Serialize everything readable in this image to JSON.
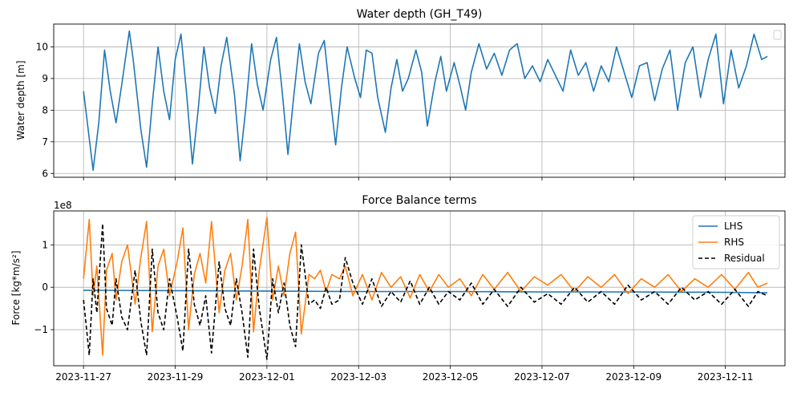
{
  "chart_data": [
    {
      "type": "line",
      "title": "Water depth (GH_T49)",
      "xlabel": "",
      "ylabel": "Water depth [m]",
      "ylim": [
        5.88,
        10.72
      ],
      "yticks": [
        6,
        7,
        8,
        9,
        10
      ],
      "xlim_days": [
        -0.65,
        15.3
      ],
      "grid": true,
      "legend": "top-right (empty)",
      "series": [
        {
          "color": "#1f77b4",
          "x": [
            "2023-11-27 00:00",
            "2023-11-27 05:00",
            "2023-11-27 08:00",
            "2023-11-27 11:00",
            "2023-11-27 14:00",
            "2023-11-27 17:00",
            "2023-11-27 20:00",
            "2023-11-28 00:00",
            "2023-11-28 02:00",
            "2023-11-28 06:00",
            "2023-11-28 09:00",
            "2023-11-28 12:00",
            "2023-11-28 15:00",
            "2023-11-28 18:00",
            "2023-11-28 21:00",
            "2023-11-29 00:00",
            "2023-11-29 03:00",
            "2023-11-29 06:00",
            "2023-11-29 09:00",
            "2023-11-29 12:00",
            "2023-11-29 15:00",
            "2023-11-29 18:00",
            "2023-11-29 21:00",
            "2023-11-30 00:00",
            "2023-11-30 03:00",
            "2023-11-30 07:00",
            "2023-11-30 10:00",
            "2023-11-30 13:00",
            "2023-11-30 16:00",
            "2023-11-30 19:00",
            "2023-11-30 22:00",
            "2023-12-01 02:00",
            "2023-12-01 05:00",
            "2023-12-01 08:00",
            "2023-12-01 11:00",
            "2023-12-01 14:00",
            "2023-12-01 17:00",
            "2023-12-01 20:00",
            "2023-12-01 23:00",
            "2023-12-02 03:00",
            "2023-12-02 06:00",
            "2023-12-02 09:00",
            "2023-12-02 12:00",
            "2023-12-02 15:00",
            "2023-12-02 18:00",
            "2023-12-02 22:00",
            "2023-12-03 01:00",
            "2023-12-03 04:00",
            "2023-12-03 07:00",
            "2023-12-03 10:00",
            "2023-12-03 14:00",
            "2023-12-03 17:00",
            "2023-12-03 20:00",
            "2023-12-03 23:00",
            "2023-12-04 02:00",
            "2023-12-04 06:00",
            "2023-12-04 09:00",
            "2023-12-04 12:00",
            "2023-12-04 16:00",
            "2023-12-04 19:00",
            "2023-12-04 22:00",
            "2023-12-05 02:00",
            "2023-12-05 05:00",
            "2023-12-05 08:00",
            "2023-12-05 11:00",
            "2023-12-05 15:00",
            "2023-12-05 19:00",
            "2023-12-05 23:00",
            "2023-12-06 03:00",
            "2023-12-06 07:00",
            "2023-12-06 11:00",
            "2023-12-06 15:00",
            "2023-12-06 19:00",
            "2023-12-06 23:00",
            "2023-12-07 03:00",
            "2023-12-07 07:00",
            "2023-12-07 11:00",
            "2023-12-07 15:00",
            "2023-12-07 19:00",
            "2023-12-07 23:00",
            "2023-12-08 03:00",
            "2023-12-08 07:00",
            "2023-12-08 11:00",
            "2023-12-08 15:00",
            "2023-12-08 19:00",
            "2023-12-08 23:00",
            "2023-12-09 03:00",
            "2023-12-09 07:00",
            "2023-12-09 11:00",
            "2023-12-09 15:00",
            "2023-12-09 19:00",
            "2023-12-09 23:00",
            "2023-12-10 03:00",
            "2023-12-10 07:00",
            "2023-12-10 11:00",
            "2023-12-10 15:00",
            "2023-12-10 19:00",
            "2023-12-10 23:00",
            "2023-12-11 03:00",
            "2023-12-11 07:00",
            "2023-12-11 11:00",
            "2023-12-11 15:00",
            "2023-12-11 19:00",
            "2023-12-11 22:00"
          ],
          "y": [
            8.6,
            6.1,
            7.6,
            9.9,
            8.6,
            7.6,
            8.8,
            10.5,
            9.6,
            7.4,
            6.2,
            8.2,
            10.0,
            8.6,
            7.7,
            9.6,
            10.4,
            8.5,
            6.3,
            8.0,
            10.0,
            8.7,
            7.9,
            9.4,
            10.3,
            8.5,
            6.4,
            8.1,
            10.1,
            8.8,
            8.0,
            9.6,
            10.3,
            8.6,
            6.6,
            8.4,
            10.1,
            8.9,
            8.2,
            9.8,
            10.2,
            8.5,
            6.9,
            8.7,
            10.0,
            9.0,
            8.4,
            9.9,
            9.8,
            8.4,
            7.3,
            8.7,
            9.6,
            8.6,
            9.0,
            9.9,
            9.2,
            7.5,
            8.9,
            9.7,
            8.6,
            9.5,
            8.8,
            8.0,
            9.2,
            10.1,
            9.3,
            9.8,
            9.1,
            9.9,
            10.1,
            9.0,
            9.4,
            8.9,
            9.6,
            9.1,
            8.6,
            9.9,
            9.1,
            9.5,
            8.6,
            9.4,
            8.9,
            10.0,
            9.2,
            8.4,
            9.4,
            9.5,
            8.3,
            9.3,
            9.9,
            8.0,
            9.5,
            10.0,
            8.4,
            9.6,
            10.4,
            8.2,
            9.9,
            8.7,
            9.4,
            10.4,
            9.6,
            9.7
          ]
        }
      ]
    },
    {
      "type": "line",
      "title": "Force Balance terms",
      "xlabel": "",
      "ylabel": "Force [kg*m/s²]",
      "offset_label": "1e8",
      "ylim": [
        -1.85,
        1.8
      ],
      "yticks": [
        -1,
        0,
        1
      ],
      "xlim_days": [
        -0.65,
        15.3
      ],
      "xticks": [
        "2023-11-27",
        "2023-11-29",
        "2023-12-01",
        "2023-12-03",
        "2023-12-05",
        "2023-12-07",
        "2023-12-09",
        "2023-12-11"
      ],
      "grid": true,
      "legend": "top-right",
      "series": [
        {
          "name": "LHS",
          "color": "#1f77b4",
          "style": "solid",
          "x": [
            "2023-11-27",
            "2023-11-29",
            "2023-12-01",
            "2023-12-03",
            "2023-12-05",
            "2023-12-07",
            "2023-12-09",
            "2023-12-11",
            "2023-12-11 22:00"
          ],
          "y": [
            -0.07,
            -0.08,
            -0.09,
            -0.1,
            -0.1,
            -0.11,
            -0.11,
            -0.12,
            -0.13
          ]
        },
        {
          "name": "RHS",
          "color": "#ff7f0e",
          "style": "solid",
          "x": [
            "2023-11-27 00:00",
            "2023-11-27 03:00",
            "2023-11-27 05:00",
            "2023-11-27 07:00",
            "2023-11-27 10:00",
            "2023-11-27 12:00",
            "2023-11-27 15:00",
            "2023-11-27 17:00",
            "2023-11-27 20:00",
            "2023-11-27 23:00",
            "2023-11-28 03:00",
            "2023-11-28 06:00",
            "2023-11-28 09:00",
            "2023-11-28 12:00",
            "2023-11-28 15:00",
            "2023-11-28 18:00",
            "2023-11-28 21:00",
            "2023-11-29 01:00",
            "2023-11-29 04:00",
            "2023-11-29 07:00",
            "2023-11-29 10:00",
            "2023-11-29 13:00",
            "2023-11-29 16:00",
            "2023-11-29 19:00",
            "2023-11-29 23:00",
            "2023-11-30 02:00",
            "2023-11-30 05:00",
            "2023-11-30 08:00",
            "2023-11-30 11:00",
            "2023-11-30 14:00",
            "2023-11-30 17:00",
            "2023-11-30 20:00",
            "2023-12-01 00:00",
            "2023-12-01 03:00",
            "2023-12-01 06:00",
            "2023-12-01 09:00",
            "2023-12-01 12:00",
            "2023-12-01 15:00",
            "2023-12-01 18:00",
            "2023-12-01 22:00",
            "2023-12-02 01:00",
            "2023-12-02 04:00",
            "2023-12-02 07:00",
            "2023-12-02 10:00",
            "2023-12-02 14:00",
            "2023-12-02 17:00",
            "2023-12-02 21:00",
            "2023-12-03 02:00",
            "2023-12-03 07:00",
            "2023-12-03 12:00",
            "2023-12-03 17:00",
            "2023-12-03 22:00",
            "2023-12-04 03:00",
            "2023-12-04 08:00",
            "2023-12-04 13:00",
            "2023-12-04 18:00",
            "2023-12-04 23:00",
            "2023-12-05 05:00",
            "2023-12-05 11:00",
            "2023-12-05 17:00",
            "2023-12-05 23:00",
            "2023-12-06 06:00",
            "2023-12-06 13:00",
            "2023-12-06 20:00",
            "2023-12-07 03:00",
            "2023-12-07 10:00",
            "2023-12-07 17:00",
            "2023-12-08 00:00",
            "2023-12-08 07:00",
            "2023-12-08 14:00",
            "2023-12-08 21:00",
            "2023-12-09 04:00",
            "2023-12-09 11:00",
            "2023-12-09 18:00",
            "2023-12-10 01:00",
            "2023-12-10 08:00",
            "2023-12-10 15:00",
            "2023-12-10 22:00",
            "2023-12-11 05:00",
            "2023-12-11 12:00",
            "2023-12-11 17:00",
            "2023-12-11 22:00"
          ],
          "y": [
            0.2,
            1.6,
            -0.2,
            0.5,
            -1.6,
            0.4,
            0.8,
            -0.3,
            0.6,
            1.0,
            -0.4,
            0.7,
            1.55,
            -1.05,
            0.5,
            0.9,
            -0.2,
            0.6,
            1.4,
            -1.0,
            0.3,
            0.8,
            0.1,
            1.55,
            -0.6,
            0.4,
            0.8,
            -0.3,
            0.5,
            1.6,
            -1.05,
            0.4,
            1.65,
            -0.3,
            0.5,
            -0.2,
            0.8,
            1.3,
            -1.1,
            0.3,
            0.2,
            0.4,
            -0.1,
            0.3,
            0.2,
            0.5,
            -0.2,
            0.3,
            -0.3,
            0.35,
            0.0,
            0.25,
            -0.25,
            0.3,
            -0.1,
            0.3,
            0.0,
            0.2,
            -0.2,
            0.3,
            -0.05,
            0.35,
            -0.1,
            0.25,
            0.05,
            0.3,
            -0.1,
            0.25,
            0.0,
            0.3,
            -0.15,
            0.2,
            0.0,
            0.3,
            -0.1,
            0.2,
            0.0,
            0.3,
            -0.05,
            0.35,
            0.0,
            0.1
          ]
        },
        {
          "name": "Residual",
          "color": "#000000",
          "style": "dashed",
          "x": [
            "2023-11-27 00:00",
            "2023-11-27 03:00",
            "2023-11-27 05:00",
            "2023-11-27 07:00",
            "2023-11-27 10:00",
            "2023-11-27 12:00",
            "2023-11-27 15:00",
            "2023-11-27 17:00",
            "2023-11-27 20:00",
            "2023-11-27 23:00",
            "2023-11-28 03:00",
            "2023-11-28 06:00",
            "2023-11-28 09:00",
            "2023-11-28 12:00",
            "2023-11-28 15:00",
            "2023-11-28 18:00",
            "2023-11-28 21:00",
            "2023-11-29 01:00",
            "2023-11-29 04:00",
            "2023-11-29 07:00",
            "2023-11-29 10:00",
            "2023-11-29 13:00",
            "2023-11-29 16:00",
            "2023-11-29 19:00",
            "2023-11-29 23:00",
            "2023-11-30 02:00",
            "2023-11-30 05:00",
            "2023-11-30 08:00",
            "2023-11-30 11:00",
            "2023-11-30 14:00",
            "2023-11-30 17:00",
            "2023-11-30 20:00",
            "2023-12-01 00:00",
            "2023-12-01 03:00",
            "2023-12-01 06:00",
            "2023-12-01 09:00",
            "2023-12-01 12:00",
            "2023-12-01 15:00",
            "2023-12-01 18:00",
            "2023-12-01 22:00",
            "2023-12-02 01:00",
            "2023-12-02 04:00",
            "2023-12-02 07:00",
            "2023-12-02 10:00",
            "2023-12-02 14:00",
            "2023-12-02 17:00",
            "2023-12-02 21:00",
            "2023-12-03 02:00",
            "2023-12-03 07:00",
            "2023-12-03 12:00",
            "2023-12-03 17:00",
            "2023-12-03 22:00",
            "2023-12-04 03:00",
            "2023-12-04 08:00",
            "2023-12-04 13:00",
            "2023-12-04 18:00",
            "2023-12-04 23:00",
            "2023-12-05 05:00",
            "2023-12-05 11:00",
            "2023-12-05 17:00",
            "2023-12-05 23:00",
            "2023-12-06 06:00",
            "2023-12-06 13:00",
            "2023-12-06 20:00",
            "2023-12-07 03:00",
            "2023-12-07 10:00",
            "2023-12-07 17:00",
            "2023-12-08 00:00",
            "2023-12-08 07:00",
            "2023-12-08 14:00",
            "2023-12-08 21:00",
            "2023-12-09 04:00",
            "2023-12-09 11:00",
            "2023-12-09 18:00",
            "2023-12-10 01:00",
            "2023-12-10 08:00",
            "2023-12-10 15:00",
            "2023-12-10 22:00",
            "2023-12-11 05:00",
            "2023-12-11 12:00",
            "2023-12-11 17:00",
            "2023-12-11 22:00"
          ],
          "y": [
            -0.3,
            -1.6,
            0.2,
            -0.6,
            1.5,
            -0.5,
            -0.9,
            0.2,
            -0.7,
            -1.0,
            0.4,
            -0.8,
            -1.6,
            0.9,
            -0.6,
            -1.0,
            0.2,
            -0.7,
            -1.5,
            0.9,
            -0.4,
            -0.9,
            -0.2,
            -1.55,
            0.6,
            -0.5,
            -0.9,
            0.2,
            -0.6,
            -1.65,
            0.9,
            -0.5,
            -1.7,
            0.2,
            -0.6,
            0.1,
            -0.9,
            -1.4,
            1.0,
            -0.4,
            -0.3,
            -0.5,
            0.0,
            -0.4,
            -0.3,
            0.7,
            0.1,
            -0.4,
            0.2,
            -0.45,
            -0.1,
            -0.35,
            0.15,
            -0.4,
            0.0,
            -0.4,
            -0.1,
            -0.3,
            0.1,
            -0.4,
            -0.05,
            -0.45,
            0.0,
            -0.35,
            -0.15,
            -0.4,
            0.0,
            -0.35,
            -0.1,
            -0.4,
            0.05,
            -0.3,
            -0.1,
            -0.4,
            0.0,
            -0.3,
            -0.1,
            -0.4,
            -0.05,
            -0.45,
            -0.1,
            -0.2
          ]
        }
      ]
    }
  ]
}
